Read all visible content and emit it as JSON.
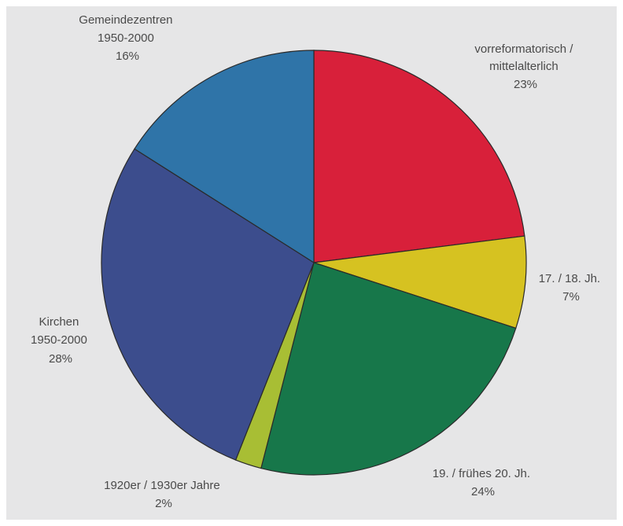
{
  "chart_data": {
    "type": "pie",
    "title": "",
    "start_angle_deg": 0,
    "direction": "clockwise",
    "slices": [
      {
        "label_lines": [
          "vorreformatorisch /",
          "mittelalterlich"
        ],
        "pct_label": "23%",
        "value": 23,
        "color": "#d8203a"
      },
      {
        "label_lines": [
          "17. / 18. Jh."
        ],
        "pct_label": "7%",
        "value": 7,
        "color": "#d6c221"
      },
      {
        "label_lines": [
          "19. / frühes 20. Jh."
        ],
        "pct_label": "24%",
        "value": 24,
        "color": "#17774a"
      },
      {
        "label_lines": [
          "1920er / 1930er Jahre"
        ],
        "pct_label": "2%",
        "value": 2,
        "color": "#a8be34"
      },
      {
        "label_lines": [
          "Kirchen",
          "1950-2000"
        ],
        "pct_label": "28%",
        "value": 28,
        "color": "#3c4d8d"
      },
      {
        "label_lines": [
          "Gemeindezentren",
          "1950-2000"
        ],
        "pct_label": "16%",
        "value": 16,
        "color": "#2f74a8"
      }
    ]
  }
}
